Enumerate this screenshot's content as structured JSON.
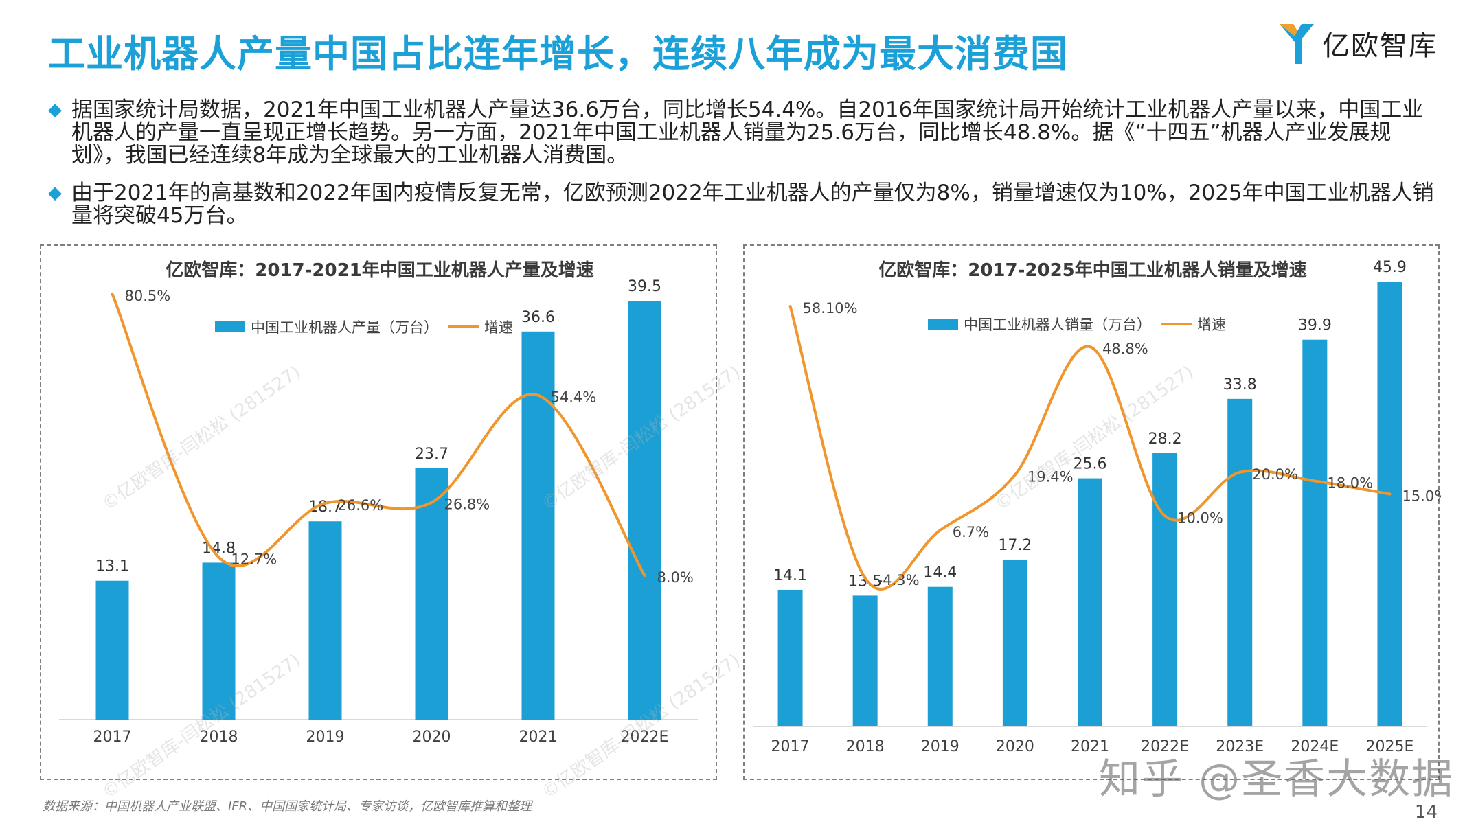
{
  "page": {
    "title": "工业机器人产量中国占比连年增长，连续八年成为最大消费国",
    "logo_text": "亿欧智库",
    "bullet_marker": "◆",
    "bullets": [
      "据国家统计局数据，2021年中国工业机器人产量达36.6万台，同比增长54.4%。自2016年国家统计局开始统计工业机器人产量以来，中国工业机器人的产量一直呈现正增长趋势。另一方面，2021年中国工业机器人销量为25.6万台，同比增长48.8%。据《“十四五”机器人产业发展规划》，我国已经连续8年成为全球最大的工业机器人消费国。",
      "由于2021年的高基数和2022年国内疫情反复无常，亿欧预测2022年工业机器人的产量仅为8%，销量增速仅为10%，2025年中国工业机器人销量将突破45万台。"
    ],
    "footnote": "数据来源：中国机器人产业联盟、IFR、中国国家统计局、专家访谈，亿欧智库推算和整理",
    "page_number": "14",
    "watermark_platform": "知乎 @圣香大数据",
    "watermark_diag": "©亿欧智库-闫松松 (281527)"
  },
  "colors": {
    "title": "#1ba0d7",
    "bar": "#1b9fd5",
    "line": "#f0962d",
    "axis": "#d9d9d9",
    "label": "#333333"
  },
  "chart_data": [
    {
      "type": "bar",
      "title": "亿欧智库：2017-2021年中国工业机器人产量及增速",
      "categories": [
        "2017",
        "2018",
        "2019",
        "2020",
        "2021",
        "2022E"
      ],
      "series": [
        {
          "name": "中国工业机器人产量（万台）",
          "kind": "bar",
          "values": [
            13.1,
            14.8,
            18.7,
            23.7,
            36.6,
            39.5
          ],
          "labels": [
            "13.1",
            "14.8",
            "18.7",
            "23.7",
            "36.6",
            "39.5"
          ]
        },
        {
          "name": "增速",
          "kind": "line",
          "values": [
            80.5,
            12.7,
            26.6,
            26.8,
            54.4,
            8.0
          ],
          "labels": [
            "80.5%",
            "12.7%",
            "26.6%",
            "26.8%",
            "54.4%",
            "8.0%"
          ]
        }
      ],
      "legend": "top-center",
      "grid": false
    },
    {
      "type": "bar",
      "title": "亿欧智库：2017-2025年中国工业机器人销量及增速",
      "categories": [
        "2017",
        "2018",
        "2019",
        "2020",
        "2021",
        "2022E",
        "2023E",
        "2024E",
        "2025E"
      ],
      "series": [
        {
          "name": "中国工业机器人销量（万台）",
          "kind": "bar",
          "values": [
            14.1,
            13.5,
            14.4,
            17.2,
            25.6,
            28.2,
            33.8,
            39.9,
            45.9
          ],
          "labels": [
            "14.1",
            "13.5",
            "14.4",
            "17.2",
            "25.6",
            "28.2",
            "33.8",
            "39.9",
            "45.9"
          ]
        },
        {
          "name": "增速",
          "kind": "line",
          "values": [
            58.1,
            -4.3,
            6.7,
            19.4,
            48.8,
            10.0,
            20.0,
            18.0,
            15.0
          ],
          "labels": [
            "58.10%",
            "-4.3%",
            "6.7%",
            "19.4%",
            "48.8%",
            "10.0%",
            "20.0%",
            "18.0%",
            "15.0%"
          ]
        }
      ],
      "legend": "top-center",
      "grid": false
    }
  ]
}
